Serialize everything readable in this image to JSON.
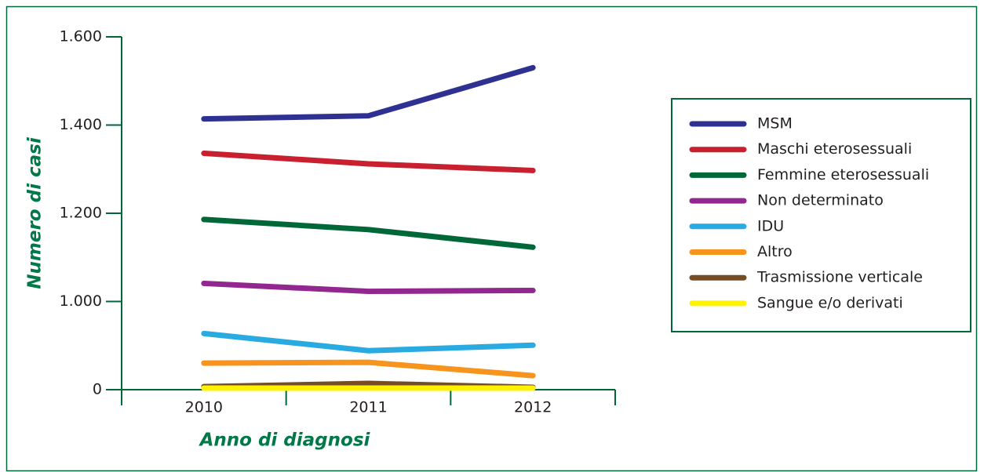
{
  "chart_data": {
    "type": "line",
    "xlabel": "Anno di diagnosi",
    "ylabel": "Numero di casi",
    "categories": [
      "2010",
      "2011",
      "2012"
    ],
    "ylim": [
      0,
      1600
    ],
    "yticks": [
      0,
      {
        "value": 1000,
        "label": "1.000"
      },
      {
        "value": 1200,
        "label": "1.200"
      },
      {
        "value": 1400,
        "label": "1.400"
      },
      {
        "value": 1600,
        "label": "1.600"
      }
    ],
    "series": [
      {
        "name": "MSM",
        "color": "#2e3192",
        "values": [
          1414,
          1421,
          1530
        ]
      },
      {
        "name": "Maschi eterosessuali",
        "color": "#c8202f",
        "values": [
          1336,
          1312,
          1297
        ]
      },
      {
        "name": "Femmine eterosessuali",
        "color": "#006838",
        "values": [
          1186,
          1163,
          1123
        ]
      },
      {
        "name": "Non determinato",
        "color": "#92278f",
        "values": [
          1041,
          1023,
          1025
        ]
      },
      {
        "name": "IDU",
        "color": "#29abe2",
        "values": [
          637,
          442,
          504
        ]
      },
      {
        "name": "Altro",
        "color": "#f7941d",
        "values": [
          301,
          310,
          159
        ]
      },
      {
        "name": "Trasmissione verticale",
        "color": "#754c24",
        "values": [
          35,
          71,
          27
        ]
      },
      {
        "name": "Sangue e/o derivati",
        "color": "#fff200",
        "values": [
          18,
          18,
          18
        ]
      }
    ],
    "legend": "right"
  }
}
